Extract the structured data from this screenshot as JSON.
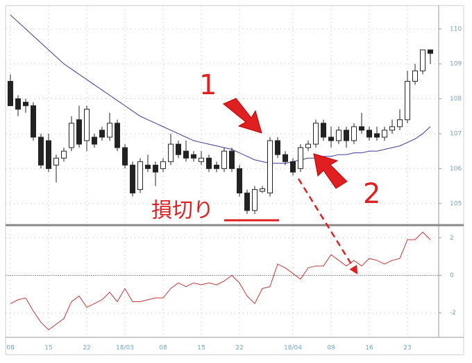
{
  "chart_data": [
    {
      "type": "candlestick",
      "open": [
        108.5,
        108.0,
        107.9,
        107.8,
        106.9,
        106.8,
        106.1,
        106.3,
        106.6,
        107.4,
        106.8,
        106.9,
        107.1,
        106.9,
        107.3,
        106.6,
        106.1,
        105.4,
        106.1,
        106.1,
        106.0,
        106.2,
        106.7,
        106.5,
        106.4,
        106.2,
        106.3,
        106.1,
        106.0,
        106.5,
        106.0,
        105.3,
        104.8,
        105.35,
        105.3,
        106.8,
        106.4,
        106.2,
        106.0,
        106.6,
        106.7,
        107.3,
        106.9,
        106.8,
        107.1,
        106.8,
        107.2,
        107.1,
        107.0,
        106.9,
        107.1,
        107.2,
        107.4,
        108.5,
        108.8,
        109.4
      ],
      "high": [
        108.7,
        108.1,
        108.0,
        107.9,
        107.0,
        107.0,
        106.4,
        106.6,
        107.5,
        107.8,
        107.8,
        107.0,
        107.2,
        107.6,
        107.4,
        106.7,
        106.2,
        106.3,
        106.4,
        106.2,
        106.3,
        107.0,
        106.8,
        106.8,
        106.5,
        106.5,
        106.4,
        106.2,
        106.6,
        106.6,
        106.1,
        105.4,
        105.5,
        105.5,
        106.9,
        106.9,
        106.5,
        106.3,
        106.7,
        106.8,
        107.4,
        107.4,
        107.2,
        107.2,
        107.2,
        107.3,
        107.6,
        107.2,
        107.2,
        107.2,
        107.4,
        107.7,
        108.8,
        109.0,
        109.4,
        109.4
      ],
      "low": [
        107.8,
        107.5,
        107.6,
        106.8,
        106.0,
        105.9,
        105.6,
        106.2,
        106.5,
        106.6,
        106.5,
        106.6,
        106.8,
        106.8,
        106.5,
        106.0,
        105.2,
        105.3,
        105.9,
        105.5,
        105.9,
        106.1,
        106.3,
        106.2,
        106.2,
        106.1,
        105.9,
        105.9,
        105.9,
        105.9,
        105.2,
        104.7,
        104.7,
        105.3,
        105.2,
        106.3,
        106.1,
        105.8,
        105.9,
        106.5,
        106.6,
        106.8,
        106.6,
        106.7,
        106.6,
        106.7,
        107.0,
        106.8,
        106.8,
        106.8,
        107.0,
        107.1,
        107.3,
        108.4,
        108.7,
        109.0
      ],
      "close": [
        107.8,
        107.7,
        107.8,
        106.9,
        106.1,
        106.0,
        106.3,
        106.5,
        107.3,
        106.7,
        107.7,
        106.7,
        106.9,
        107.3,
        106.6,
        106.1,
        105.3,
        106.2,
        106.0,
        105.9,
        106.2,
        106.7,
        106.4,
        106.3,
        106.3,
        106.3,
        106.0,
        106.0,
        106.5,
        106.0,
        105.3,
        104.8,
        105.4,
        105.42,
        106.8,
        106.4,
        106.2,
        105.9,
        106.6,
        106.7,
        107.3,
        106.9,
        106.8,
        107.1,
        106.8,
        107.2,
        107.1,
        106.9,
        106.9,
        107.1,
        107.2,
        107.4,
        108.5,
        108.8,
        109.4,
        109.3
      ],
      "up_color": "#ffffff",
      "down_color": "#222222",
      "series": [
        {
          "color": "#3a3aa0",
          "values": [
            110.4,
            110.2,
            110.0,
            109.8,
            109.6,
            109.4,
            109.2,
            109.0,
            108.85,
            108.7,
            108.55,
            108.4,
            108.25,
            108.1,
            107.95,
            107.8,
            107.65,
            107.5,
            107.4,
            107.3,
            107.2,
            107.1,
            107.0,
            106.9,
            106.8,
            106.75,
            106.7,
            106.65,
            106.6,
            106.55,
            106.45,
            106.35,
            106.25,
            106.2,
            106.15,
            106.15,
            106.15,
            106.2,
            106.25,
            106.3,
            106.3,
            106.35,
            106.35,
            106.4,
            106.4,
            106.45,
            106.45,
            106.5,
            106.5,
            106.55,
            106.6,
            106.65,
            106.75,
            106.85,
            107.0,
            107.2
          ]
        }
      ],
      "ylim": [
        104.38,
        110.67
      ],
      "yticks": [
        105,
        106,
        107,
        108,
        109,
        110
      ],
      "grid": true,
      "annotations": [
        "1",
        "2",
        "損切り"
      ]
    },
    {
      "type": "line",
      "categories": [
        "08",
        null,
        null,
        null,
        null,
        "15",
        null,
        null,
        null,
        null,
        "22",
        null,
        null,
        null,
        null,
        "18/03",
        null,
        null,
        null,
        null,
        "08",
        null,
        null,
        null,
        null,
        "15",
        null,
        null,
        null,
        null,
        "22",
        null,
        null,
        null,
        null,
        null,
        null,
        "18/04",
        null,
        null,
        null,
        null,
        "09",
        null,
        null,
        null,
        null,
        "16",
        null,
        null,
        null,
        null,
        "23",
        null,
        null,
        null
      ],
      "series": [
        {
          "color": "#cc3333",
          "values": [
            -1.5,
            -1.3,
            -1.2,
            -1.9,
            -2.5,
            -2.9,
            -2.6,
            -2.3,
            -1.4,
            -1.1,
            -1.7,
            -1.5,
            -1.3,
            -0.9,
            -1.4,
            -0.7,
            -1.4,
            -1.4,
            -1.3,
            -1.2,
            -1.2,
            -0.7,
            -0.4,
            -0.6,
            -0.4,
            -0.5,
            -0.4,
            -0.5,
            -0.3,
            0.0,
            -0.4,
            -1.1,
            -1.5,
            -0.7,
            -0.6,
            0.6,
            0.4,
            0.1,
            -0.2,
            0.4,
            0.5,
            0.5,
            1.1,
            0.8,
            0.5,
            0.8,
            0.5,
            0.9,
            0.8,
            0.6,
            0.8,
            0.9,
            1.9,
            1.9,
            2.3,
            1.9
          ]
        }
      ],
      "ylim": [
        -3.3,
        2.6
      ],
      "yticks": [
        -2,
        0,
        2
      ],
      "grid": true
    }
  ]
}
